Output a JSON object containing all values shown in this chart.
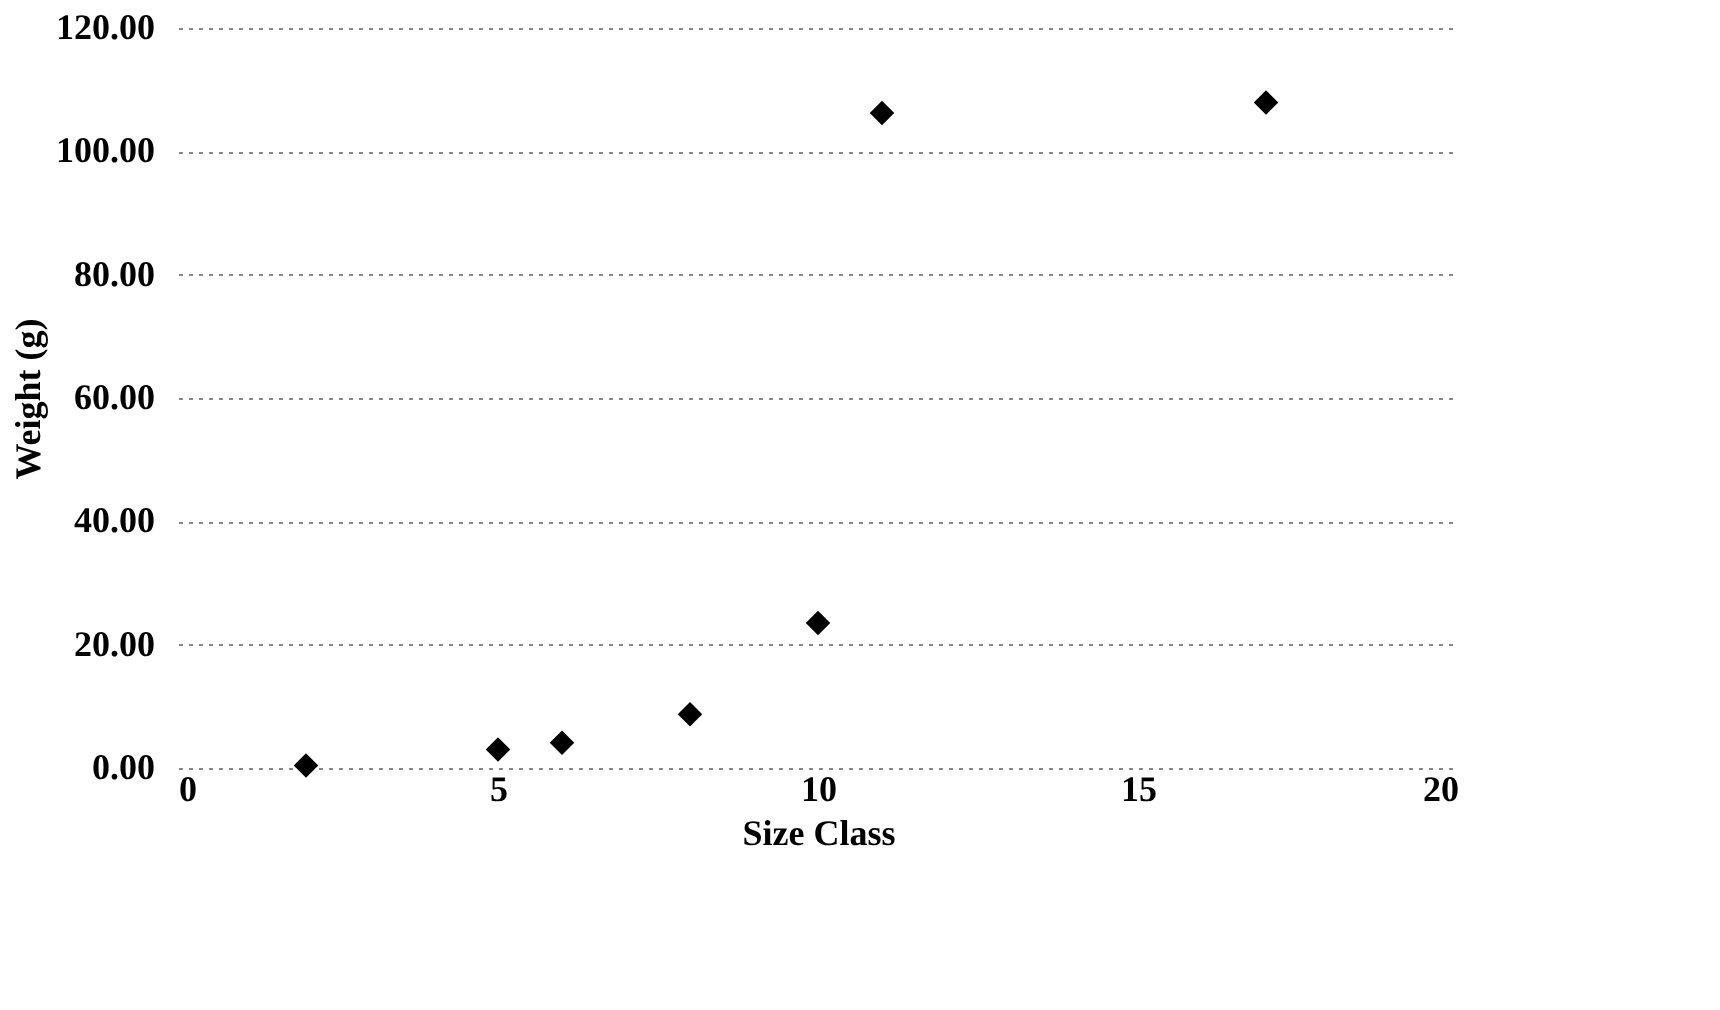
{
  "chart_data": {
    "type": "scatter",
    "xlabel": "Size Class",
    "ylabel": "Weight (g)",
    "x": [
      2,
      5,
      6,
      8,
      10,
      11,
      17
    ],
    "series": [
      {
        "color": "#000000",
        "values": [
          0.4,
          3.0,
          4.1,
          8.7,
          23.5,
          106.2,
          107.9
        ]
      }
    ],
    "xlim": [
      0,
      20
    ],
    "xticks": [
      0,
      5,
      10,
      15,
      20
    ],
    "ylim": [
      0,
      120
    ],
    "yticks": [
      {
        "value": 0,
        "label": "0.00"
      },
      {
        "value": 20,
        "label": "20.00"
      },
      {
        "value": 40,
        "label": "40.00"
      },
      {
        "value": 60,
        "label": "60.00"
      },
      {
        "value": 80,
        "label": "80.00"
      },
      {
        "value": 100,
        "label": "100.00"
      },
      {
        "value": 120,
        "label": "120.00"
      }
    ],
    "grid": "y",
    "marker": "diamond"
  }
}
